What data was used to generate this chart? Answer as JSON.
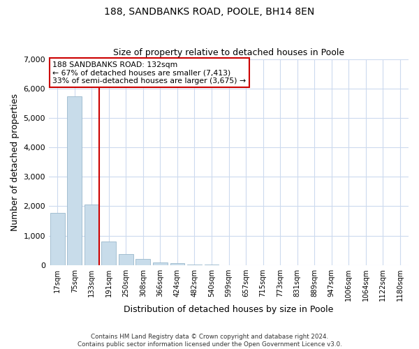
{
  "title_line1": "188, SANDBANKS ROAD, POOLE, BH14 8EN",
  "title_line2": "Size of property relative to detached houses in Poole",
  "xlabel": "Distribution of detached houses by size in Poole",
  "ylabel": "Number of detached properties",
  "bar_labels": [
    "17sqm",
    "75sqm",
    "133sqm",
    "191sqm",
    "250sqm",
    "308sqm",
    "366sqm",
    "424sqm",
    "482sqm",
    "540sqm",
    "599sqm",
    "657sqm",
    "715sqm",
    "773sqm",
    "831sqm",
    "889sqm",
    "947sqm",
    "1006sqm",
    "1064sqm",
    "1122sqm",
    "1180sqm"
  ],
  "bar_values": [
    1780,
    5740,
    2060,
    800,
    370,
    220,
    100,
    60,
    30,
    15,
    5,
    2,
    1,
    0,
    0,
    0,
    0,
    0,
    0,
    0,
    0
  ],
  "bar_color": "#c8dcea",
  "bar_edge_color": "#9ab8cc",
  "marker_line_color": "#cc0000",
  "ylim": [
    0,
    7000
  ],
  "yticks": [
    0,
    1000,
    2000,
    3000,
    4000,
    5000,
    6000,
    7000
  ],
  "annotation_title": "188 SANDBANKS ROAD: 132sqm",
  "annotation_line2": "← 67% of detached houses are smaller (7,413)",
  "annotation_line3": "33% of semi-detached houses are larger (3,675) →",
  "annotation_box_color": "#ffffff",
  "annotation_box_edge": "#cc0000",
  "footer_line1": "Contains HM Land Registry data © Crown copyright and database right 2024.",
  "footer_line2": "Contains public sector information licensed under the Open Government Licence v3.0.",
  "bg_color": "#ffffff",
  "grid_color": "#ccdaee"
}
